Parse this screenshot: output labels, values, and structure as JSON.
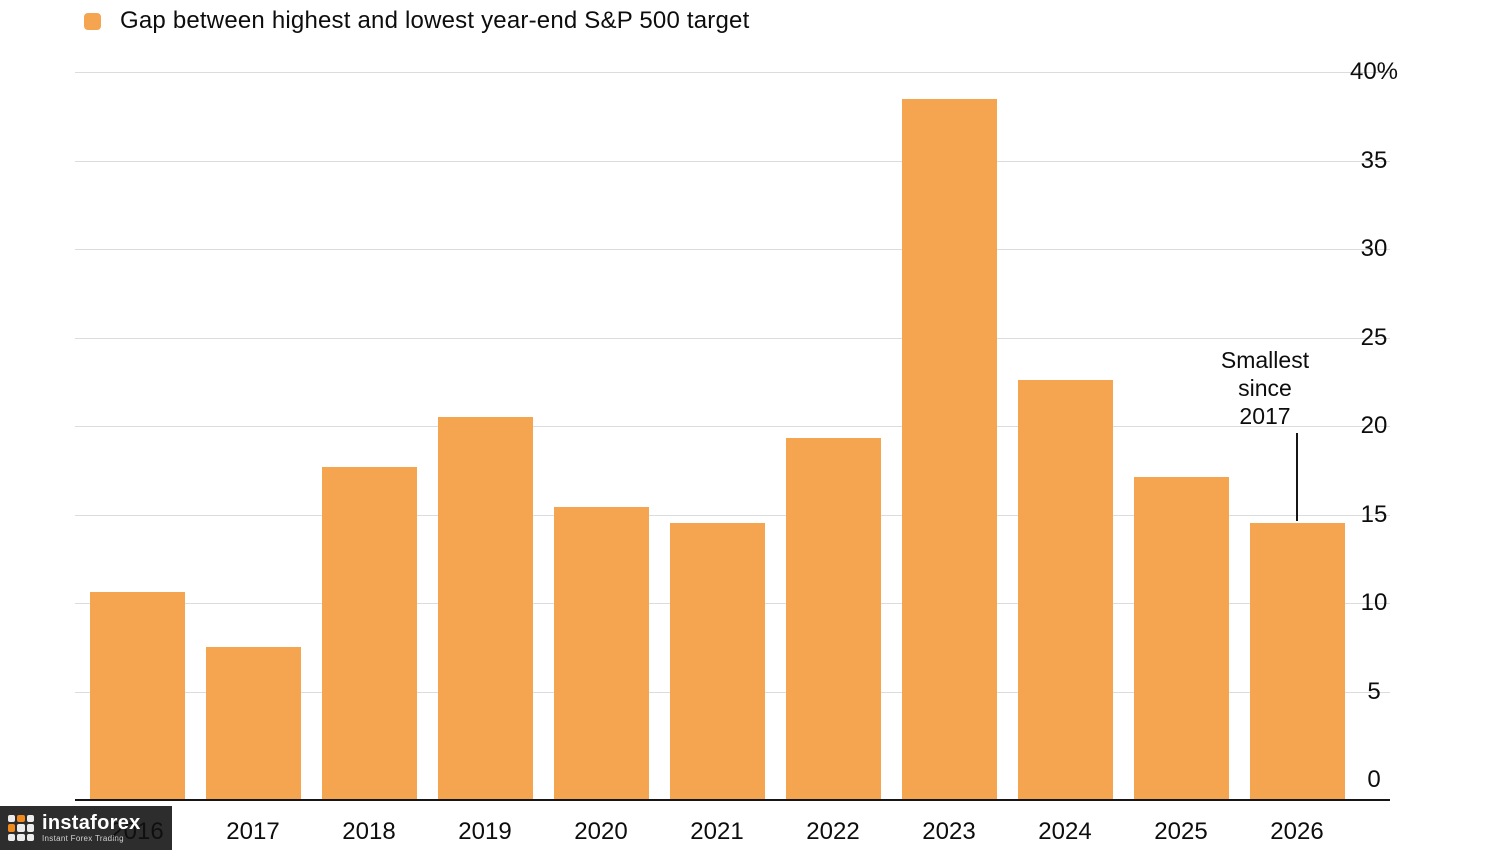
{
  "legend": {
    "label": "Gap between highest and lowest year-end S&P 500 target",
    "marker_color": "#F5A44F"
  },
  "annotation": {
    "lines": [
      "Smallest",
      "since",
      "2017"
    ],
    "target_year": "2026"
  },
  "watermark": {
    "brand": "instaforex",
    "tagline": "Instant Forex Trading",
    "icon": "instaforex-logo-icon"
  },
  "chart_data": {
    "type": "bar",
    "title": "Gap between highest and lowest year-end S&P 500 target",
    "categories": [
      "2016",
      "2017",
      "2018",
      "2019",
      "2020",
      "2021",
      "2022",
      "2023",
      "2024",
      "2025",
      "2026"
    ],
    "values": [
      10.6,
      7.5,
      17.7,
      20.5,
      15.4,
      14.5,
      19.3,
      38.5,
      22.6,
      17.1,
      14.5
    ],
    "xlabel": "",
    "ylabel": "",
    "ylim": [
      0,
      40
    ],
    "ytick_step": 5,
    "ytick_labels": [
      "0",
      "5",
      "10",
      "15",
      "20",
      "25",
      "30",
      "35",
      "40%"
    ],
    "bar_color": "#F5A44F",
    "grid": true,
    "grid_color": "#dcdcdc",
    "legend_position": "top-left",
    "y_axis_side": "right",
    "annotation": "Smallest since 2017"
  }
}
